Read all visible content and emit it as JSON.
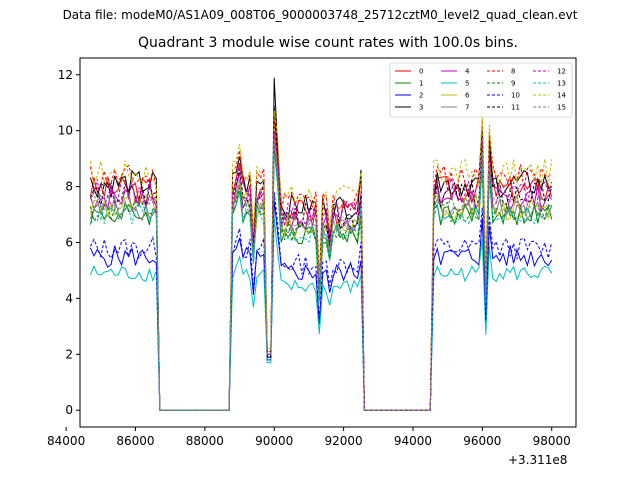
{
  "header": {
    "data_file": "Data file: modeM0/AS1A09_008T06_9000003748_25712cztM0_level2_quad_clean.evt"
  },
  "chart_data": {
    "type": "line",
    "title": "Quadrant 3 module wise count rates with 100.0s bins.",
    "x_offset_label": "+3.311e8",
    "xlabel": "",
    "ylabel": "",
    "xlim": [
      84400,
      98700
    ],
    "ylim": [
      -0.6,
      12.6
    ],
    "x_ticks": [
      84000,
      86000,
      88000,
      90000,
      92000,
      94000,
      96000,
      98000
    ],
    "x_tick_labels": [
      "84000",
      "86000",
      "88000",
      "90000",
      "92000",
      "94000",
      "96000",
      "98000"
    ],
    "y_ticks": [
      0,
      2,
      4,
      6,
      8,
      10,
      12
    ],
    "y_tick_labels": [
      "0",
      "2",
      "4",
      "6",
      "8",
      "10",
      "12"
    ],
    "legend_position": "top-right",
    "grid": false,
    "series": [
      {
        "name": "0",
        "color": "#ff0000",
        "dash": "solid",
        "level": 7.9,
        "amp": 0.5,
        "peak": 10.5,
        "dip": 2.0
      },
      {
        "name": "1",
        "color": "#008000",
        "dash": "solid",
        "level": 7.0,
        "amp": 0.4,
        "peak": 9.4,
        "dip": 2.0
      },
      {
        "name": "2",
        "color": "#0000ff",
        "dash": "solid",
        "level": 5.5,
        "amp": 0.4,
        "peak": 7.5,
        "dip": 1.8
      },
      {
        "name": "3",
        "color": "#000000",
        "dash": "solid",
        "level": 8.1,
        "amp": 0.5,
        "peak": 11.9,
        "dip": 1.9
      },
      {
        "name": "4",
        "color": "#bf00bf",
        "dash": "solid",
        "level": 7.6,
        "amp": 0.5,
        "peak": 10.0,
        "dip": 2.0
      },
      {
        "name": "5",
        "color": "#00bfbf",
        "dash": "solid",
        "level": 4.9,
        "amp": 0.3,
        "peak": 6.9,
        "dip": 1.7
      },
      {
        "name": "6",
        "color": "#bfbf00",
        "dash": "solid",
        "level": 7.3,
        "amp": 0.5,
        "peak": 9.8,
        "dip": 2.1
      },
      {
        "name": "7",
        "color": "#808080",
        "dash": "solid",
        "level": 7.2,
        "amp": 0.4,
        "peak": 9.6,
        "dip": 2.0
      },
      {
        "name": "8",
        "color": "#ff0000",
        "dash": "dashed",
        "level": 8.3,
        "amp": 0.5,
        "peak": 10.6,
        "dip": 2.1
      },
      {
        "name": "9",
        "color": "#008000",
        "dash": "dashed",
        "level": 7.1,
        "amp": 0.4,
        "peak": 9.5,
        "dip": 2.0
      },
      {
        "name": "10",
        "color": "#0000ff",
        "dash": "dashed",
        "level": 5.8,
        "amp": 0.4,
        "peak": 7.8,
        "dip": 1.9
      },
      {
        "name": "11",
        "color": "#000000",
        "dash": "dashed",
        "level": 7.7,
        "amp": 0.5,
        "peak": 10.9,
        "dip": 1.9
      },
      {
        "name": "12",
        "color": "#bf00bf",
        "dash": "dashed",
        "level": 7.8,
        "amp": 0.5,
        "peak": 9.9,
        "dip": 2.0
      },
      {
        "name": "13",
        "color": "#00bfbf",
        "dash": "dashed",
        "level": 7.0,
        "amp": 0.4,
        "peak": 9.2,
        "dip": 2.0
      },
      {
        "name": "14",
        "color": "#bfbf00",
        "dash": "dashed",
        "level": 8.5,
        "amp": 0.5,
        "peak": 10.7,
        "dip": 2.2
      },
      {
        "name": "15",
        "color": "#808080",
        "dash": "dashed",
        "level": 7.4,
        "amp": 0.4,
        "peak": 9.6,
        "dip": 2.0
      }
    ],
    "segments": [
      {
        "start": 84700,
        "end": 86600,
        "on": true
      },
      {
        "start": 86700,
        "end": 88700,
        "on": false
      },
      {
        "start": 88800,
        "end": 92500,
        "on": true
      },
      {
        "start": 92600,
        "end": 94500,
        "on": false
      },
      {
        "start": 94600,
        "end": 98000,
        "on": true
      }
    ],
    "bin_seconds": 100
  }
}
